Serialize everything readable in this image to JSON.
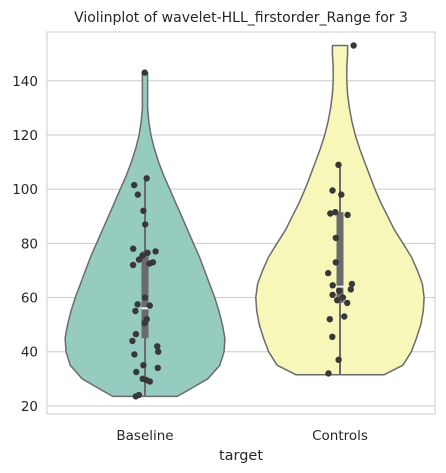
{
  "chart_data": {
    "type": "violin",
    "title": "Violinplot of wavelet-HLL_firstorder_Range for 3",
    "xlabel": "target",
    "ylabel": "",
    "categories": [
      "Baseline",
      "Controls"
    ],
    "ylim": [
      17,
      158
    ],
    "yticks": [
      20,
      40,
      60,
      80,
      100,
      120,
      140
    ],
    "grid": true,
    "colors": {
      "Baseline": "#96cbc0",
      "Controls": "#f7f7b9",
      "outline": "#6b6b6b",
      "points": "#383838",
      "box": "#6b6b6b",
      "median": "#f2f2f2",
      "grid": "#cccccc",
      "frame": "#cccccc"
    },
    "violins": [
      {
        "category": "Baseline",
        "range": [
          23.5,
          143
        ],
        "quartiles": [
          45,
          56,
          77
        ],
        "whiskers": [
          23.5,
          104
        ],
        "density_profile": [
          [
            23.5,
            0.38
          ],
          [
            26,
            0.52
          ],
          [
            30,
            0.74
          ],
          [
            35,
            0.88
          ],
          [
            40,
            0.93
          ],
          [
            45,
            0.94
          ],
          [
            50,
            0.91
          ],
          [
            55,
            0.87
          ],
          [
            60,
            0.82
          ],
          [
            65,
            0.76
          ],
          [
            70,
            0.7
          ],
          [
            75,
            0.64
          ],
          [
            80,
            0.57
          ],
          [
            85,
            0.5
          ],
          [
            90,
            0.43
          ],
          [
            95,
            0.36
          ],
          [
            100,
            0.29
          ],
          [
            105,
            0.22
          ],
          [
            110,
            0.16
          ],
          [
            115,
            0.11
          ],
          [
            120,
            0.07
          ],
          [
            125,
            0.045
          ],
          [
            130,
            0.03
          ],
          [
            135,
            0.03
          ],
          [
            140,
            0.03
          ],
          [
            143,
            0.03
          ]
        ],
        "points": [
          143,
          104,
          101.5,
          98,
          92,
          87,
          78,
          77,
          76.5,
          75.5,
          74,
          73,
          72.5,
          72,
          60,
          57.5,
          57,
          55,
          52,
          50.5,
          46.5,
          44,
          42,
          40,
          39,
          35,
          34,
          32.5,
          30,
          29.5,
          29,
          24,
          23.5
        ]
      },
      {
        "category": "Controls",
        "range": [
          31.5,
          153
        ],
        "quartiles": [
          58,
          64,
          91.5
        ],
        "whiskers": [
          31.5,
          109
        ],
        "density_profile": [
          [
            31.5,
            0.52
          ],
          [
            35,
            0.74
          ],
          [
            40,
            0.84
          ],
          [
            45,
            0.9
          ],
          [
            50,
            0.95
          ],
          [
            55,
            0.98
          ],
          [
            60,
            0.99
          ],
          [
            65,
            0.97
          ],
          [
            70,
            0.91
          ],
          [
            75,
            0.84
          ],
          [
            80,
            0.74
          ],
          [
            85,
            0.64
          ],
          [
            90,
            0.56
          ],
          [
            95,
            0.48
          ],
          [
            100,
            0.41
          ],
          [
            105,
            0.35
          ],
          [
            110,
            0.29
          ],
          [
            115,
            0.23
          ],
          [
            120,
            0.18
          ],
          [
            125,
            0.14
          ],
          [
            130,
            0.11
          ],
          [
            135,
            0.09
          ],
          [
            140,
            0.08
          ],
          [
            145,
            0.08
          ],
          [
            150,
            0.09
          ],
          [
            153,
            0.09
          ]
        ],
        "points": [
          153,
          109,
          99.5,
          98,
          91.5,
          91,
          90.5,
          82,
          73,
          69,
          65,
          64.5,
          63,
          62.5,
          61,
          60,
          59,
          58,
          53,
          52,
          45.5,
          37,
          32
        ]
      }
    ]
  }
}
